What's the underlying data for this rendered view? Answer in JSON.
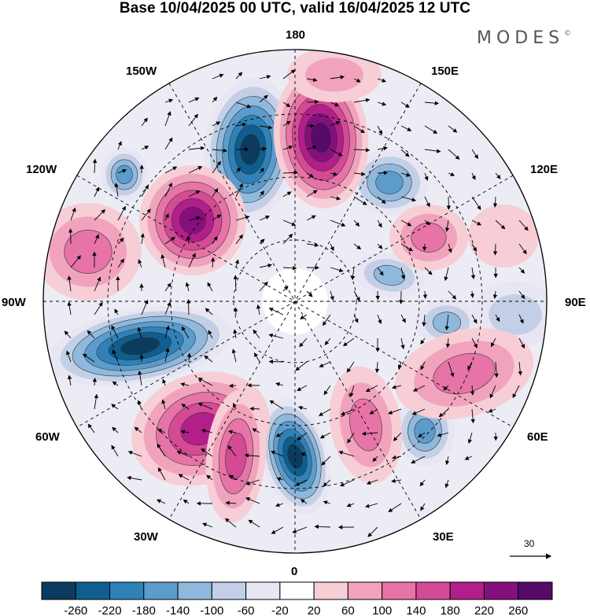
{
  "header": {
    "title": "Base 10/04/2025 00 UTC, valid 16/04/2025 12 UTC",
    "brand": "MODES",
    "brand_mark": "©"
  },
  "map": {
    "projection": "north-polar-stereographic",
    "longitude_labels": {
      "lon_180": "180",
      "lon_150w": "150W",
      "lon_150e": "150E",
      "lon_120w": "120W",
      "lon_120e": "120E",
      "lon_90w": "90W",
      "lon_90e": "90E",
      "lon_60w": "60W",
      "lon_60e": "60E",
      "lon_30w": "30W",
      "lon_30e": "30E",
      "lon_0": "0"
    },
    "wind_reference_vector": "30",
    "colors": {
      "neg_strong": "#0b3c5e",
      "neg_weak": "#e8e6f2",
      "pos_weak": "#f7cdd6",
      "pos_strong": "#560a69"
    }
  },
  "colorbar": {
    "ticks": [
      "-260",
      "-220",
      "-180",
      "-140",
      "-100",
      "-60",
      "-20",
      "20",
      "60",
      "100",
      "140",
      "180",
      "220",
      "260"
    ],
    "colors": [
      "#0b3c5e",
      "#0f5e8f",
      "#2f82b8",
      "#5c9ccc",
      "#8fb8dd",
      "#c3cfe6",
      "#e8e6f2",
      "#ffffff",
      "#f7cdd6",
      "#f1a3bd",
      "#e774a6",
      "#d44a94",
      "#b21e8a",
      "#860f7e",
      "#560a69"
    ]
  }
}
